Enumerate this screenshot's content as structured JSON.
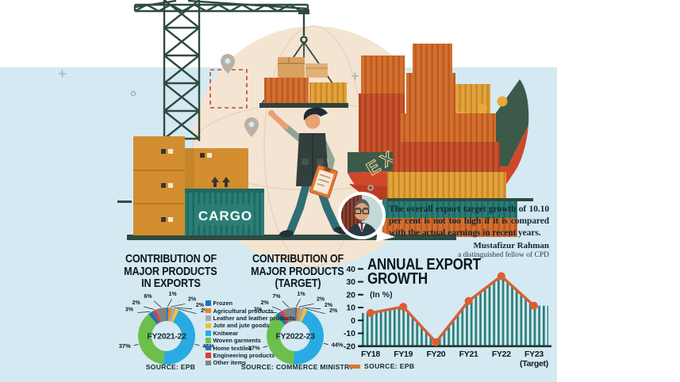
{
  "illustration": {
    "cargo_label": "CARGO",
    "ship_label": "EXPORT"
  },
  "quote": {
    "text": "The overall export target growth of 10.10 per cent is not too high if it is compared with the actual earnings in recent years.",
    "author": "Mustafizur Rahman",
    "author_title": "a distinguished fellow of CPD"
  },
  "legend": {
    "items": [
      {
        "label": "Frozen",
        "color": "#1b75bc"
      },
      {
        "label": "Agricultural products",
        "color": "#e6872b"
      },
      {
        "label": "Leather and leather products",
        "color": "#a7a9ac"
      },
      {
        "label": "Jute and jute goods",
        "color": "#f5c02c"
      },
      {
        "label": "Knitwear",
        "color": "#29abe2"
      },
      {
        "label": "Woven garments",
        "color": "#6cbf4b"
      },
      {
        "label": "Home textiles",
        "color": "#1b75bc"
      },
      {
        "label": "Engineering products",
        "color": "#e23b37"
      },
      {
        "label": "Other items",
        "color": "#808285"
      }
    ]
  },
  "chart_data": [
    {
      "type": "pie",
      "subtype": "donut",
      "title_lines": [
        "CONTRIBUTION OF",
        "MAJOR PRODUCTS",
        "IN EXPORTS"
      ],
      "center_label": "FY2021-22",
      "source": "SOURCE: EPB",
      "categories": [
        "Frozen",
        "Agricultural products",
        "Leather and leather products",
        "Jute and jute goods",
        "Knitwear",
        "Woven garments",
        "Home textiles",
        "Engineering products",
        "Other items"
      ],
      "values": [
        1,
        2,
        2,
        2,
        45,
        37,
        3,
        2,
        6
      ],
      "unit": "%"
    },
    {
      "type": "pie",
      "subtype": "donut",
      "title_lines": [
        "CONTRIBUTION OF",
        "MAJOR PRODUCTS",
        "(TARGET)"
      ],
      "center_label": "FY2022-23",
      "source": "SOURCE: COMMERCE MINISTRY",
      "categories": [
        "Frozen",
        "Agricultural products",
        "Leather and leather products",
        "Jute and jute goods",
        "Knitwear",
        "Woven garments",
        "Home textiles",
        "Engineering products",
        "Other items"
      ],
      "values": [
        1,
        2,
        2,
        2,
        44,
        37,
        3,
        2,
        7
      ],
      "unit": "%"
    },
    {
      "type": "line",
      "title": "ANNUAL EXPORT GROWTH",
      "subtitle": "(In %)",
      "source": "SOURCE: EPB",
      "categories": [
        "FY18",
        "FY19",
        "FY20",
        "FY21",
        "FY22",
        "FY23"
      ],
      "last_label_note": "(Target)",
      "values": [
        5.8,
        10.6,
        -16.9,
        15.1,
        34.4,
        11.4
      ],
      "ylim": [
        -20,
        40
      ],
      "yticks": [
        40,
        30,
        20,
        10,
        0,
        -10,
        -20
      ],
      "line_color": "#d95f33",
      "fill_style": "vertical-hatch",
      "hatch_color": "#2b7f77"
    }
  ]
}
